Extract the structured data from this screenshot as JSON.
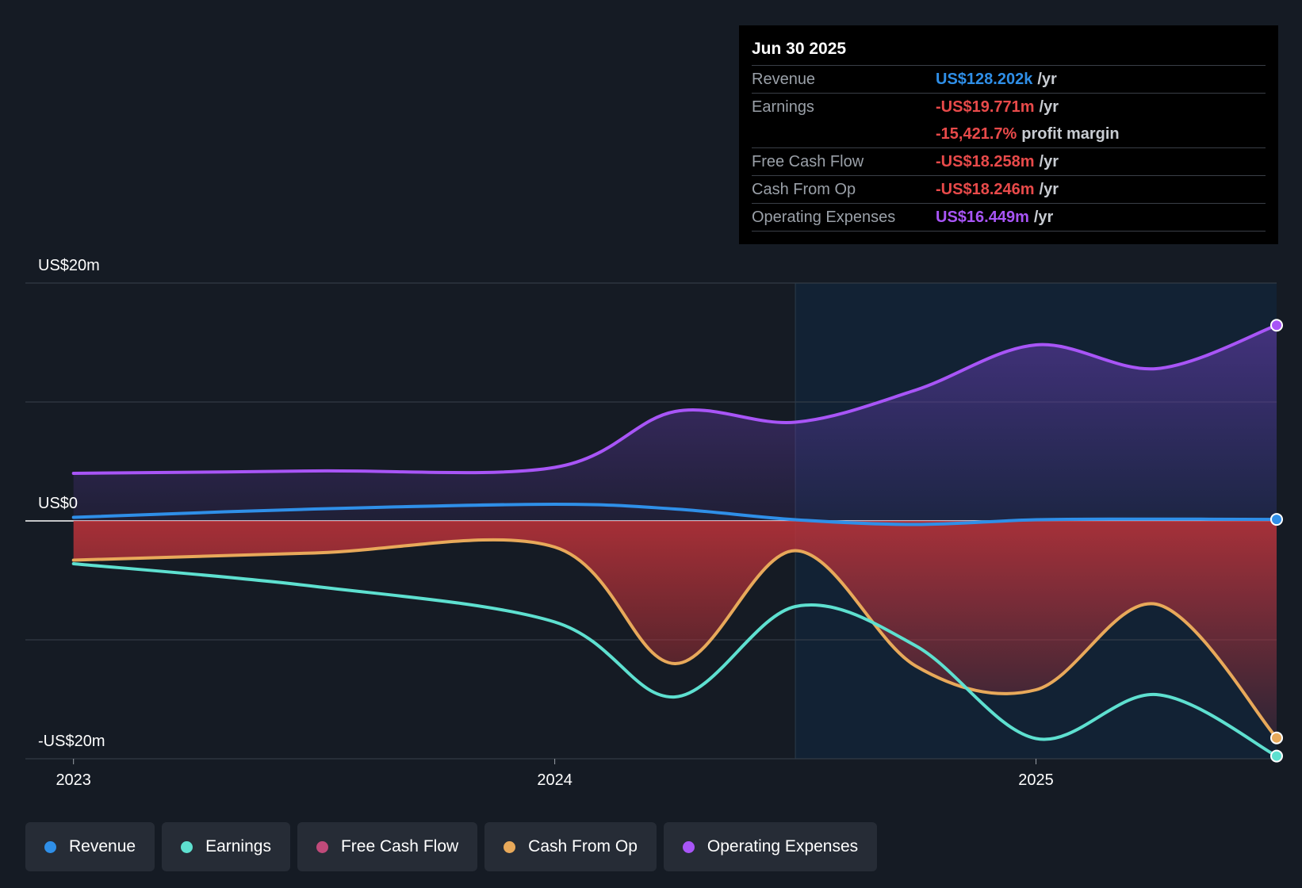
{
  "chart_data": {
    "type": "area",
    "title": "",
    "y_labels": [
      "US$20m",
      "US$0",
      "-US$20m"
    ],
    "ylim": [
      -20,
      20
    ],
    "x_ticks": [
      {
        "label": "2023",
        "x": 2023.0
      },
      {
        "label": "2024",
        "x": 2024.0
      },
      {
        "label": "2025",
        "x": 2025.0
      }
    ],
    "xlim": [
      2022.9,
      2025.5
    ],
    "forecast_start_x": 2024.5,
    "series": [
      {
        "name": "Operating Expenses",
        "color": "#a855f7",
        "x": [
          2023.0,
          2023.5,
          2024.0,
          2024.25,
          2024.5,
          2024.75,
          2025.0,
          2025.25,
          2025.5
        ],
        "values": [
          4.0,
          4.2,
          4.5,
          9.2,
          8.3,
          11.0,
          14.8,
          12.8,
          16.449
        ]
      },
      {
        "name": "Revenue",
        "color": "#2f8fe8",
        "x": [
          2023.0,
          2023.5,
          2024.0,
          2024.25,
          2024.5,
          2024.75,
          2025.0,
          2025.25,
          2025.5
        ],
        "values": [
          0.3,
          1.0,
          1.4,
          1.0,
          0.1,
          -0.3,
          0.1,
          0.15,
          0.128
        ]
      },
      {
        "name": "Cash From Op",
        "color": "#e8a95a",
        "x": [
          2023.0,
          2023.5,
          2024.0,
          2024.25,
          2024.5,
          2024.75,
          2025.0,
          2025.25,
          2025.5
        ],
        "values": [
          -3.3,
          -2.7,
          -2.2,
          -12.0,
          -2.5,
          -12.2,
          -14.2,
          -7.0,
          -18.246
        ]
      },
      {
        "name": "Earnings",
        "color": "#5ee0d0",
        "x": [
          2023.0,
          2023.5,
          2024.0,
          2024.25,
          2024.5,
          2024.75,
          2025.0,
          2025.25,
          2025.5
        ],
        "values": [
          -3.6,
          -5.5,
          -8.5,
          -14.8,
          -7.2,
          -10.5,
          -18.3,
          -14.6,
          -19.771
        ]
      },
      {
        "name": "Free Cash Flow",
        "color": "#c04a7a",
        "x": [
          2023.0,
          2023.5,
          2024.0,
          2024.25,
          2024.5,
          2024.75,
          2025.0,
          2025.25,
          2025.5
        ],
        "values": [
          -3.3,
          -2.7,
          -2.2,
          -12.0,
          -2.5,
          -12.2,
          -14.2,
          -7.0,
          -18.258
        ]
      }
    ]
  },
  "tooltip": {
    "date": "Jun 30 2025",
    "rows": [
      {
        "label": "Revenue",
        "value": "US$128.202k",
        "unit": "/yr",
        "color": "#2f8fe8"
      },
      {
        "label": "Earnings",
        "value": "-US$19.771m",
        "unit": "/yr",
        "color": "#e84a4a"
      },
      {
        "label": "",
        "value": "-15,421.7%",
        "unit": "profit margin",
        "color": "#e84a4a"
      },
      {
        "label": "Free Cash Flow",
        "value": "-US$18.258m",
        "unit": "/yr",
        "color": "#e84a4a"
      },
      {
        "label": "Cash From Op",
        "value": "-US$18.246m",
        "unit": "/yr",
        "color": "#e84a4a"
      },
      {
        "label": "Operating Expenses",
        "value": "US$16.449m",
        "unit": "/yr",
        "color": "#a855f7"
      }
    ]
  },
  "legend": [
    {
      "label": "Revenue",
      "color": "#2f8fe8"
    },
    {
      "label": "Earnings",
      "color": "#5ee0d0"
    },
    {
      "label": "Free Cash Flow",
      "color": "#c04a7a"
    },
    {
      "label": "Cash From Op",
      "color": "#e8a95a"
    },
    {
      "label": "Operating Expenses",
      "color": "#a855f7"
    }
  ]
}
